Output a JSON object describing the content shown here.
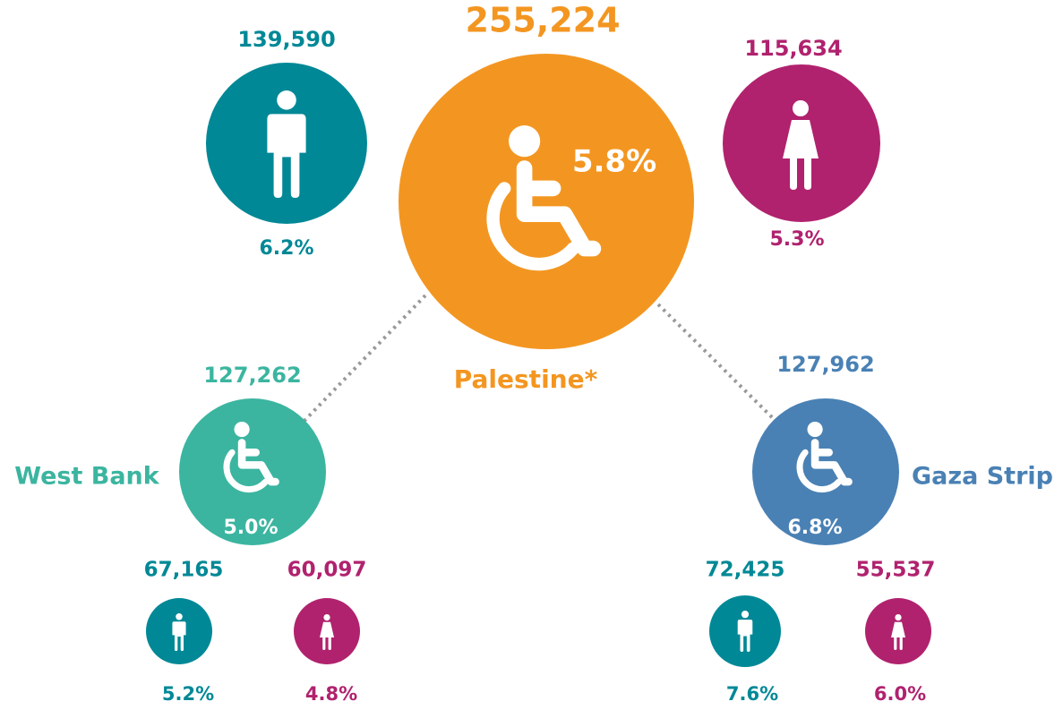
{
  "palestine": {
    "label": "Palestine*",
    "count": "255,224",
    "rate": "5.8%",
    "male": {
      "count": "139,590",
      "rate": "6.2%"
    },
    "female": {
      "count": "115,634",
      "rate": "5.3%"
    }
  },
  "regions": [
    {
      "label": "West Bank",
      "count": "127,262",
      "rate": "5.0%",
      "male": {
        "count": "67,165",
        "rate": "5.2%"
      },
      "female": {
        "count": "60,097",
        "rate": "4.8%"
      }
    },
    {
      "label": "Gaza Strip",
      "count": "127,962",
      "rate": "6.8%",
      "male": {
        "count": "72,425",
        "rate": "7.6%"
      },
      "female": {
        "count": "55,537",
        "rate": "6.0%"
      }
    }
  ]
}
